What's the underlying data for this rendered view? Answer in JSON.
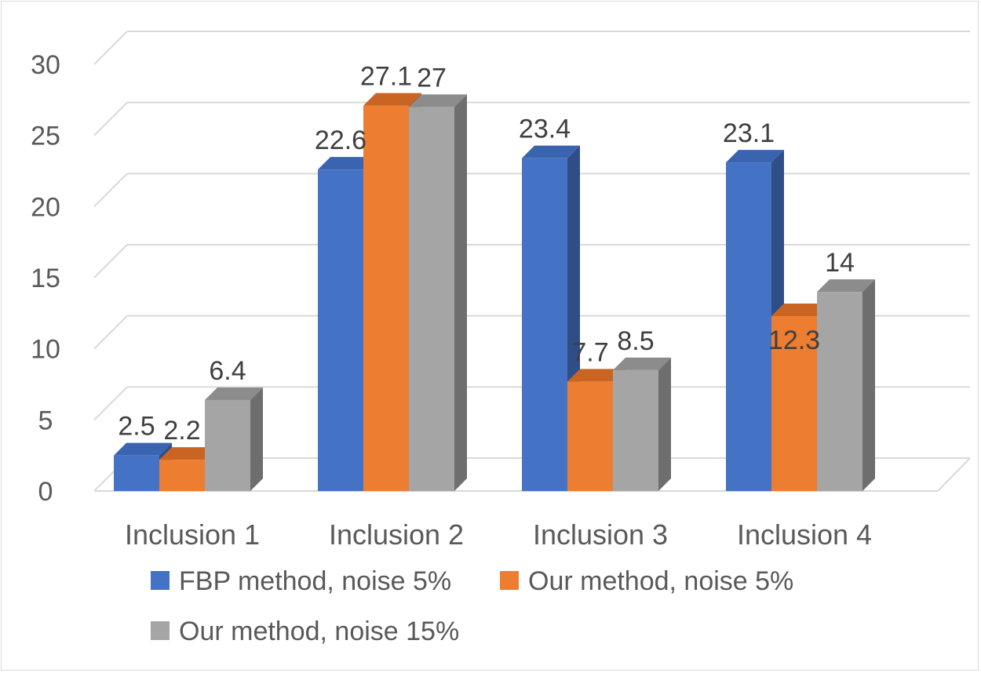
{
  "chart_data": {
    "type": "bar",
    "style": "3d-clustered-column",
    "title": "",
    "xlabel": "",
    "ylabel": "",
    "categories": [
      "Inclusion 1",
      "Inclusion 2",
      "Inclusion 3",
      "Inclusion 4"
    ],
    "series": [
      {
        "name": "FBP method, noise 5%",
        "values": [
          2.5,
          22.6,
          23.4,
          23.1
        ],
        "labels": [
          "2.5",
          "22.6",
          "23.4",
          "23.1"
        ],
        "color": "#4472c4",
        "side_color": "#2f4e87",
        "top_color": "#3a64b0"
      },
      {
        "name": "Our method, noise 5%",
        "values": [
          2.2,
          27.1,
          7.7,
          12.3
        ],
        "labels": [
          "2.2",
          "27.1",
          "7.7",
          "12.3"
        ],
        "color": "#ed7d31",
        "side_color": "#a9561f",
        "top_color": "#c96422"
      },
      {
        "name": "Our method, noise 15%",
        "values": [
          6.4,
          27,
          8.5,
          14
        ],
        "labels": [
          "6.4",
          "27",
          "8.5",
          "14"
        ],
        "color": "#a5a5a5",
        "side_color": "#6e6e6e",
        "top_color": "#8c8c8c"
      }
    ],
    "y_ticks": [
      "0",
      "5",
      "10",
      "15",
      "20",
      "25",
      "30"
    ],
    "ylim": [
      0,
      30
    ],
    "grid": true,
    "legend_position": "bottom"
  }
}
